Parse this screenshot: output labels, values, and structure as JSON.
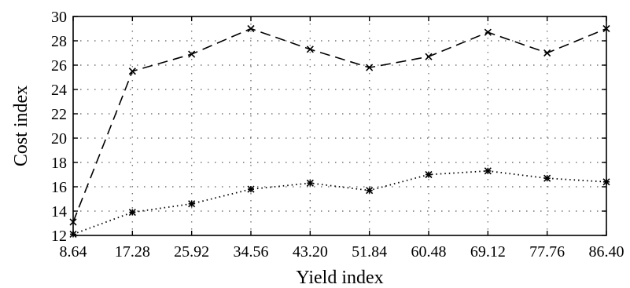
{
  "chart_data": {
    "type": "line",
    "title": "",
    "xlabel": "Yield index",
    "ylabel": "Cost index",
    "categories": [
      "8.64",
      "17.28",
      "25.92",
      "34.56",
      "43.20",
      "51.84",
      "60.48",
      "69.12",
      "77.76",
      "86.40"
    ],
    "x": [
      8.64,
      17.28,
      25.92,
      34.56,
      43.2,
      51.84,
      60.48,
      69.12,
      77.76,
      86.4
    ],
    "xlim": [
      8.64,
      86.4
    ],
    "ylim": [
      12,
      30
    ],
    "yticks": [
      "12",
      "14",
      "16",
      "18",
      "20",
      "22",
      "24",
      "26",
      "28",
      "30"
    ],
    "grid": true,
    "legend": "none",
    "series": [
      {
        "line_style": "dashed",
        "marker": "x",
        "color": "#000000",
        "values": [
          13.1,
          25.5,
          26.9,
          29.0,
          27.3,
          25.8,
          26.7,
          28.7,
          27.0,
          29.0
        ]
      },
      {
        "line_style": "dotted",
        "marker": "asterisk",
        "color": "#000000",
        "values": [
          12.1,
          13.9,
          14.6,
          15.8,
          16.3,
          15.7,
          17.0,
          17.3,
          16.7,
          16.4
        ]
      }
    ]
  }
}
